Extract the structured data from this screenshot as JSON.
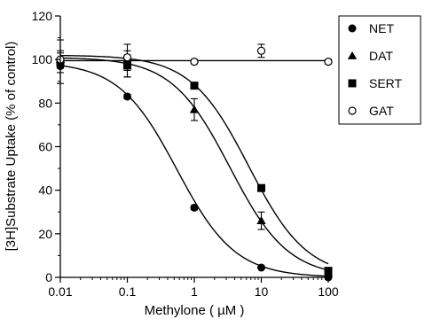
{
  "chart_data": {
    "type": "scatter",
    "title": "",
    "xlabel": "Methylone ( µM )",
    "ylabel": "[3H]Substrate Uptake (% of control)",
    "xscale": "log",
    "xlim": [
      0.01,
      100
    ],
    "ylim": [
      0,
      120
    ],
    "x_ticks": [
      0.01,
      0.1,
      1,
      10,
      100
    ],
    "x_tick_labels": [
      "0.01",
      "0.1",
      "1",
      "10",
      "100"
    ],
    "y_ticks": [
      0,
      20,
      40,
      60,
      80,
      100,
      120
    ],
    "y_tick_labels": [
      "0",
      "20",
      "40",
      "60",
      "80",
      "100",
      "120"
    ],
    "grid": false,
    "legend_position": "outside-top-right",
    "series": [
      {
        "name": "NET",
        "marker": "filled-circle",
        "curve_ic50": 0.55,
        "curve_top": 99,
        "points": [
          {
            "x": 0.01,
            "y": 97,
            "err": 3
          },
          {
            "x": 0.1,
            "y": 83,
            "err": 1
          },
          {
            "x": 1,
            "y": 32,
            "err": 1
          },
          {
            "x": 10,
            "y": 4.5,
            "err": 0.5
          },
          {
            "x": 100,
            "y": 0,
            "err": 0
          }
        ]
      },
      {
        "name": "DAT",
        "marker": "filled-triangle",
        "curve_ic50": 3.4,
        "curve_top": 101,
        "points": [
          {
            "x": 0.01,
            "y": 100,
            "err": 4
          },
          {
            "x": 0.1,
            "y": 97,
            "err": 5
          },
          {
            "x": 1,
            "y": 77,
            "err": 5
          },
          {
            "x": 10,
            "y": 26,
            "err": 4
          },
          {
            "x": 100,
            "y": 2,
            "err": 1
          }
        ]
      },
      {
        "name": "SERT",
        "marker": "filled-square",
        "curve_ic50": 6.5,
        "curve_top": 102,
        "points": [
          {
            "x": 0.01,
            "y": 99,
            "err": 10
          },
          {
            "x": 0.1,
            "y": 98,
            "err": 6
          },
          {
            "x": 1,
            "y": 88,
            "err": 1
          },
          {
            "x": 10,
            "y": 41,
            "err": 1
          },
          {
            "x": 100,
            "y": 3,
            "err": 1
          }
        ]
      },
      {
        "name": "GAT",
        "marker": "open-circle",
        "curve_flat": 99.5,
        "points": [
          {
            "x": 0.01,
            "y": 100,
            "err": 3
          },
          {
            "x": 0.1,
            "y": 101,
            "err": 6
          },
          {
            "x": 1,
            "y": 99,
            "err": 1
          },
          {
            "x": 10,
            "y": 104,
            "err": 3
          },
          {
            "x": 100,
            "y": 99,
            "err": 1
          }
        ]
      }
    ]
  }
}
